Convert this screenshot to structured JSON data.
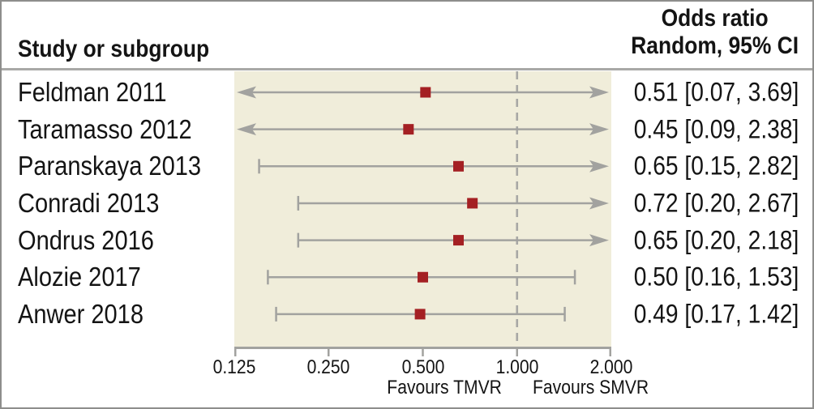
{
  "chart_data": {
    "type": "scatter",
    "subtype": "forest-plot",
    "header": {
      "left": "Study or subgroup",
      "right_line1": "Odds ratio",
      "right_line2": "Random, 95% CI"
    },
    "x_axis": {
      "scale": "log",
      "min": 0.125,
      "max": 2.0,
      "tick_values": [
        0.125,
        0.25,
        0.5,
        1.0,
        2.0
      ],
      "tick_labels": [
        "0.125",
        "0.250",
        "0.500",
        "1.000",
        "2.000"
      ],
      "null_line_value": 1.0,
      "favours_left": "Favours TMVR",
      "favours_right": "Favours SMVR"
    },
    "studies": [
      {
        "label": "Feldman 2011",
        "or": 0.51,
        "ci_low": 0.07,
        "ci_high": 3.69,
        "display": "0.51 [0.07, 3.69]"
      },
      {
        "label": "Taramasso 2012",
        "or": 0.45,
        "ci_low": 0.09,
        "ci_high": 2.38,
        "display": "0.45 [0.09, 2.38]"
      },
      {
        "label": "Paranskaya 2013",
        "or": 0.65,
        "ci_low": 0.15,
        "ci_high": 2.82,
        "display": "0.65 [0.15, 2.82]"
      },
      {
        "label": "Conradi 2013",
        "or": 0.72,
        "ci_low": 0.2,
        "ci_high": 2.67,
        "display": "0.72 [0.20, 2.67]"
      },
      {
        "label": "Ondrus 2016",
        "or": 0.65,
        "ci_low": 0.2,
        "ci_high": 2.18,
        "display": "0.65 [0.20, 2.18]"
      },
      {
        "label": "Alozie 2017",
        "or": 0.5,
        "ci_low": 0.16,
        "ci_high": 1.53,
        "display": "0.50 [0.16, 1.53]"
      },
      {
        "label": "Anwer 2018",
        "or": 0.49,
        "ci_low": 0.17,
        "ci_high": 1.42,
        "display": "0.49 [0.17, 1.42]"
      }
    ],
    "colors": {
      "marker": "#a42023",
      "ci_line": "#a2a29f",
      "dashed_null_line": "#a8a8a5",
      "axis_line": "#a2a29f",
      "panel_background": "#f0edda",
      "text": "#141414",
      "outer_border": "#8e8e8c",
      "header_separator": "#a9a9a7"
    }
  }
}
